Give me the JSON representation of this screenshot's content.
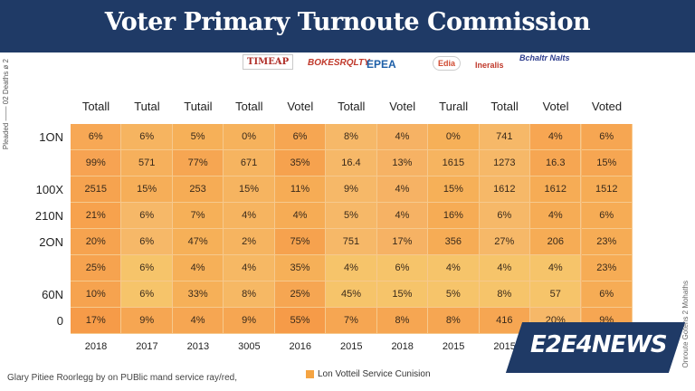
{
  "header": {
    "title": "Voter Primary Turnoute Commission"
  },
  "logos": [
    "TIMEAP",
    "BOKESRQLTY",
    "EPEA",
    "Edia",
    "Ineralis",
    "Bchaltr Nalts"
  ],
  "side_left_text": "Pleaded —— 02 Deaths ø 2",
  "side_right_text": "Onroute Gotens 2 Mohaths",
  "footnote": "Glary Pitiee Roorlegg by on PUBlic mand service ray/red,",
  "legend": {
    "label": "Lon Votteil Service Cunision",
    "color": "#f5a442"
  },
  "brand": {
    "text": "E2E4NEWS"
  },
  "chart_data": {
    "type": "table",
    "title": "Voter Primary Turnoute Commission",
    "columns": [
      "Totall",
      "Tutal",
      "Tutail",
      "Totall",
      "Votel",
      "Totall",
      "Votel",
      "Turall",
      "Totall",
      "Votel",
      "Voted"
    ],
    "row_labels": [
      "1ON",
      "",
      "100X",
      "210N",
      "2ON",
      "",
      "60N",
      "0"
    ],
    "years": [
      "2018",
      "2017",
      "2013",
      "3005",
      "2016",
      "2015",
      "2018",
      "2015",
      "2015",
      "",
      ""
    ],
    "cells": [
      [
        "6%",
        "6%",
        "5%",
        "0%",
        "6%",
        "8%",
        "4%",
        "0%",
        "741",
        "4%",
        "6%"
      ],
      [
        "99%",
        "571",
        "77%",
        "671",
        "35%",
        "16.4",
        "13%",
        "1615",
        "1273",
        "16.3",
        "15%"
      ],
      [
        "2515",
        "15%",
        "253",
        "15%",
        "11%",
        "9%",
        "4%",
        "15%",
        "1612",
        "1612",
        "1512"
      ],
      [
        "21%",
        "6%",
        "7%",
        "4%",
        "4%",
        "5%",
        "4%",
        "16%",
        "6%",
        "4%",
        "6%"
      ],
      [
        "20%",
        "6%",
        "47%",
        "2%",
        "75%",
        "751",
        "17%",
        "356",
        "27%",
        "206",
        "23%"
      ],
      [
        "25%",
        "6%",
        "4%",
        "4%",
        "35%",
        "4%",
        "6%",
        "4%",
        "4%",
        "4%",
        "23%"
      ],
      [
        "10%",
        "6%",
        "33%",
        "8%",
        "25%",
        "45%",
        "15%",
        "5%",
        "8%",
        "57",
        "6%"
      ],
      [
        "17%",
        "9%",
        "4%",
        "9%",
        "55%",
        "7%",
        "8%",
        "8%",
        "416",
        "20%",
        "9%"
      ]
    ],
    "cell_colors": [
      [
        "#f7a855",
        "#f6b460",
        "#f6b058",
        "#f6b25c",
        "#f6a652",
        "#f6b868",
        "#f6b264",
        "#f6b058",
        "#f6b868",
        "#f7a652",
        "#f6a652"
      ],
      [
        "#f7a352",
        "#f6b05c",
        "#f6a652",
        "#f6b460",
        "#f6a24e",
        "#f6b868",
        "#f6b264",
        "#f6b460",
        "#f6b868",
        "#f6a652",
        "#f6a652"
      ],
      [
        "#f6a34f",
        "#f6ae58",
        "#f6ac55",
        "#f6b460",
        "#f6ac55",
        "#f6b868",
        "#f6b264",
        "#f6b058",
        "#f6b868",
        "#f6ac55",
        "#f6ac55"
      ],
      [
        "#f7a24d",
        "#f6b868",
        "#f6b058",
        "#f6b460",
        "#f6ac55",
        "#f6b868",
        "#f6b264",
        "#f6ac55",
        "#f6b868",
        "#f6ac55",
        "#f6ac55"
      ],
      [
        "#f6a34f",
        "#f6b868",
        "#f6b058",
        "#f6b460",
        "#f6a24e",
        "#f6b868",
        "#f6b264",
        "#f6ac55",
        "#f6b868",
        "#f6ac55",
        "#f6ac55"
      ],
      [
        "#f6a34f",
        "#f6c46a",
        "#f6b058",
        "#f6b864",
        "#f6b058",
        "#f6c46a",
        "#f6c46a",
        "#f6c46a",
        "#f6c46a",
        "#f6c46a",
        "#f6ac55"
      ],
      [
        "#f6a34f",
        "#f6c46a",
        "#f6b058",
        "#f6b864",
        "#f6a652",
        "#f6c46a",
        "#f6c46a",
        "#f6c46a",
        "#f6c46a",
        "#f6c46a",
        "#f6ac55"
      ],
      [
        "#f69b48",
        "#f6a652",
        "#f6a652",
        "#f6a652",
        "#f69b48",
        "#f6a652",
        "#f6a652",
        "#f6a652",
        "#f6a652",
        "#f6b868",
        "#f6a652"
      ]
    ]
  }
}
